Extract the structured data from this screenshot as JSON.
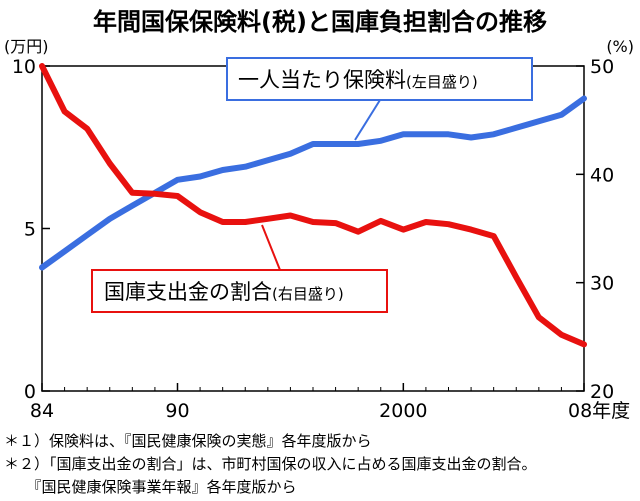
{
  "chart_data": {
    "type": "line",
    "title": "年間国保保険料(税)と国庫負担割合の推移",
    "y_left_label": "(万円)",
    "y_right_label": "(%)",
    "x_labels": [
      "84",
      "90",
      "2000",
      "08年度"
    ],
    "xlim": [
      1984,
      2008
    ],
    "ylim_left": [
      0,
      10
    ],
    "ylim_right": [
      20,
      50
    ],
    "left_ticks": [
      "0",
      "5",
      "10"
    ],
    "right_ticks": [
      "20",
      "30",
      "40",
      "50"
    ],
    "series": [
      {
        "name": "一人当たり保険料",
        "name_note": "(左目盛り)",
        "axis": "left",
        "color": "#3a6ee0",
        "x": [
          1984,
          1985,
          1986,
          1987,
          1988,
          1989,
          1990,
          1991,
          1992,
          1993,
          1994,
          1995,
          1996,
          1997,
          1998,
          1999,
          2000,
          2001,
          2002,
          2003,
          2004,
          2005,
          2006,
          2007,
          2008
        ],
        "values": [
          3.8,
          4.3,
          4.8,
          5.3,
          5.7,
          6.1,
          6.5,
          6.6,
          6.8,
          6.9,
          7.1,
          7.3,
          7.6,
          7.6,
          7.6,
          7.7,
          7.9,
          7.9,
          7.9,
          7.8,
          7.9,
          8.1,
          8.3,
          8.5,
          9.0
        ]
      },
      {
        "name": "国庫支出金の割合",
        "name_note": "(右目盛り)",
        "axis": "right",
        "color": "#e8110f",
        "x": [
          1984,
          1985,
          1986,
          1987,
          1988,
          1989,
          1990,
          1991,
          1992,
          1993,
          1994,
          1995,
          1996,
          1997,
          1998,
          1999,
          2000,
          2001,
          2002,
          2003,
          2004,
          2005,
          2006,
          2007,
          2008
        ],
        "values": [
          50.0,
          45.8,
          44.2,
          41.0,
          38.3,
          38.2,
          38.0,
          36.5,
          35.6,
          35.6,
          35.9,
          36.2,
          35.6,
          35.5,
          34.7,
          35.7,
          34.9,
          35.6,
          35.4,
          34.9,
          34.3,
          30.5,
          26.8,
          25.2,
          24.3
        ]
      }
    ]
  },
  "notes": [
    "＊１）保険料は、『国民健康保険の実態』各年度版から",
    "＊２）「国庫支出金の割合」は、市町村国保の収入に占める国庫支出金の割合。",
    "　　『国民健康保険事業年報』各年度版から"
  ]
}
